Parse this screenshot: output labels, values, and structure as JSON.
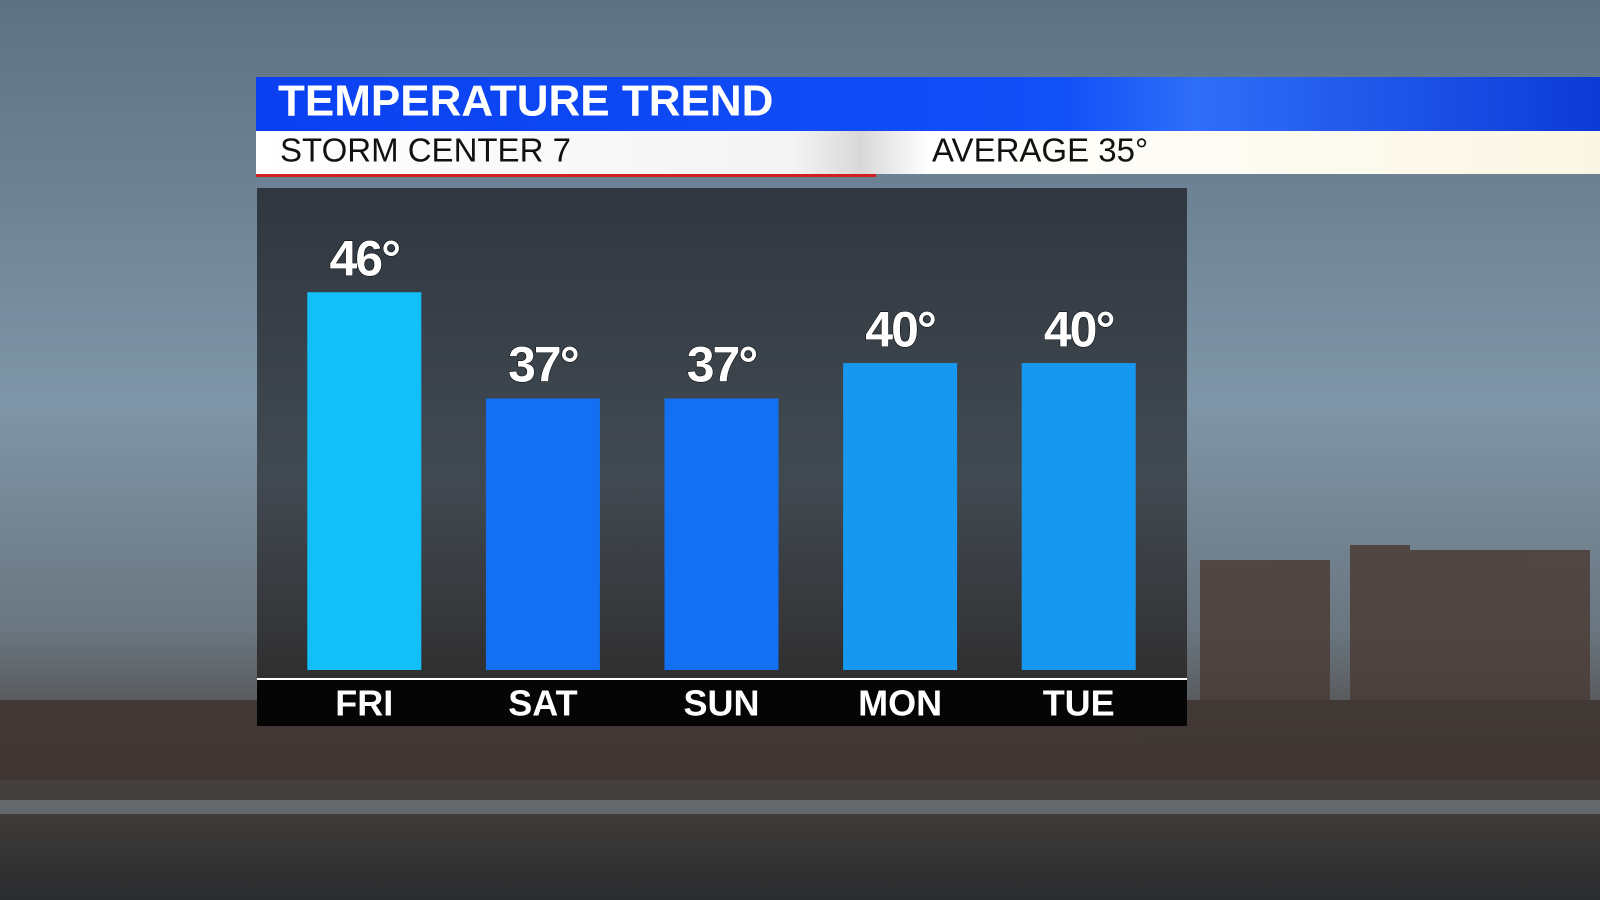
{
  "chart_data": {
    "type": "bar",
    "title": "TEMPERATURE TREND",
    "subtitle": "STORM CENTER 7",
    "annotation": "AVERAGE 35°",
    "categories": [
      "FRI",
      "SAT",
      "SUN",
      "MON",
      "TUE"
    ],
    "values": [
      46,
      37,
      37,
      40,
      40
    ],
    "value_labels": [
      "46°",
      "37°",
      "37°",
      "40°",
      "40°"
    ],
    "colors": [
      "#12c0f7",
      "#1470f2",
      "#1470f2",
      "#1698f0",
      "#1698f0"
    ],
    "ylim": [
      14,
      50
    ]
  }
}
